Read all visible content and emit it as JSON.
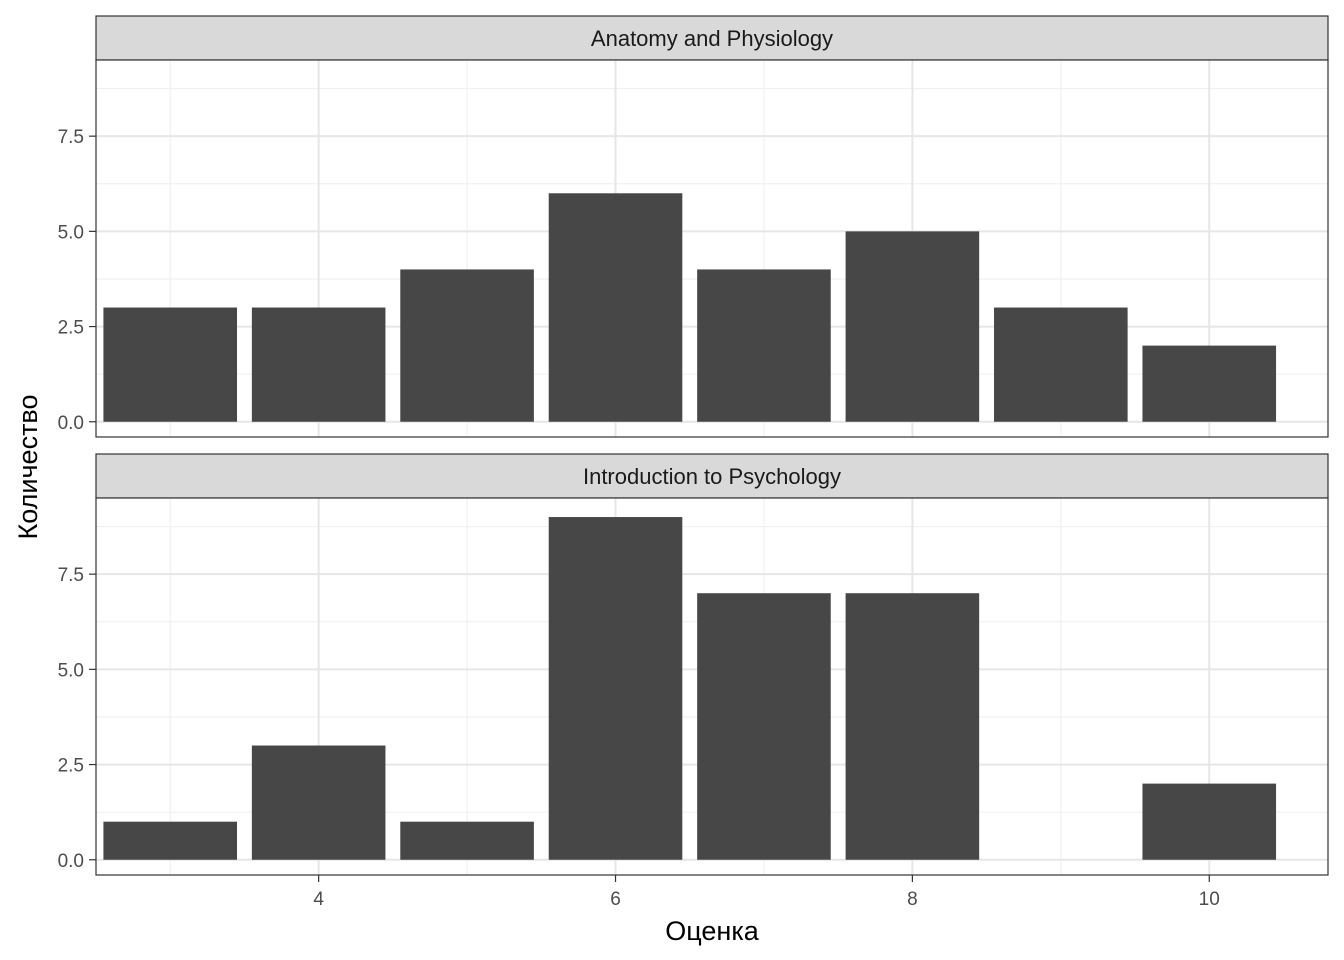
{
  "chart_data": {
    "type": "bar",
    "xlabel": "Оценка",
    "ylabel": "Количество",
    "x_ticks": [
      4,
      6,
      8,
      10
    ],
    "y_ticks": [
      "0.0",
      "2.5",
      "5.0",
      "7.5"
    ],
    "xlim": [
      2.5,
      10.8
    ],
    "ylim": [
      -0.4,
      9.5
    ],
    "grid": true,
    "bar_color": "#474747",
    "strip_color": "#d9d9d9",
    "panels": [
      {
        "title": "Anatomy and Physiology",
        "x": [
          3,
          4,
          5,
          6,
          7,
          8,
          9,
          10
        ],
        "values": [
          3,
          3,
          4,
          6,
          4,
          5,
          3,
          2
        ]
      },
      {
        "title": "Introduction to Psychology",
        "x": [
          3,
          4,
          5,
          6,
          7,
          8,
          9,
          10
        ],
        "values": [
          1,
          3,
          1,
          9,
          7,
          7,
          0,
          2
        ]
      }
    ]
  }
}
